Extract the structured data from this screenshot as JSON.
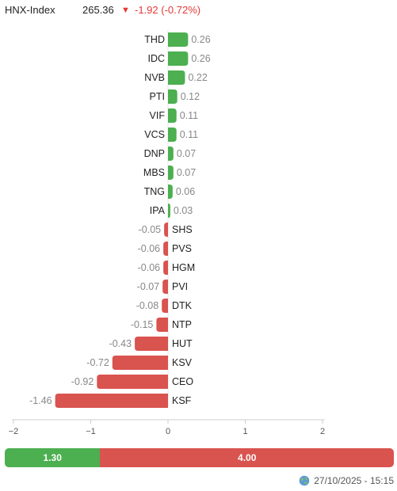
{
  "header": {
    "index_name": "HNX-Index",
    "index_value": "265.36",
    "arrow_glyph": "▼",
    "index_change": "-1.92 (-0.72%)"
  },
  "chart_data": {
    "type": "bar",
    "orientation": "horizontal",
    "categories": [
      "THD",
      "IDC",
      "NVB",
      "PTI",
      "VIF",
      "VCS",
      "DNP",
      "MBS",
      "TNG",
      "IPA",
      "SHS",
      "PVS",
      "HGM",
      "PVI",
      "DTK",
      "NTP",
      "HUT",
      "KSV",
      "CEO",
      "KSF"
    ],
    "values": [
      0.26,
      0.26,
      0.22,
      0.12,
      0.11,
      0.11,
      0.07,
      0.07,
      0.06,
      0.03,
      -0.05,
      -0.06,
      -0.06,
      -0.07,
      -0.08,
      -0.15,
      -0.43,
      -0.72,
      -0.92,
      -1.46
    ],
    "value_labels": [
      "0.26",
      "0.26",
      "0.22",
      "0.12",
      "0.11",
      "0.11",
      "0.07",
      "0.07",
      "0.06",
      "0.03",
      "-0.05",
      "-0.06",
      "-0.06",
      "-0.07",
      "-0.08",
      "-0.15",
      "-0.43",
      "-0.72",
      "-0.92",
      "-1.46"
    ],
    "xlim": [
      -2,
      2
    ],
    "xticks": [
      -2,
      -1,
      0,
      1,
      2
    ],
    "xtick_labels": [
      "−2",
      "−1",
      "0",
      "1",
      "2"
    ],
    "colors": {
      "positive": "#4caf50",
      "negative": "#d9534f"
    }
  },
  "summary": {
    "up_label": "1.30",
    "down_label": "4.00",
    "up_value": 1.3,
    "down_value": 4.0
  },
  "footer": {
    "timestamp": "27/10/2025 - 15:15",
    "icon": "globe-icon"
  }
}
